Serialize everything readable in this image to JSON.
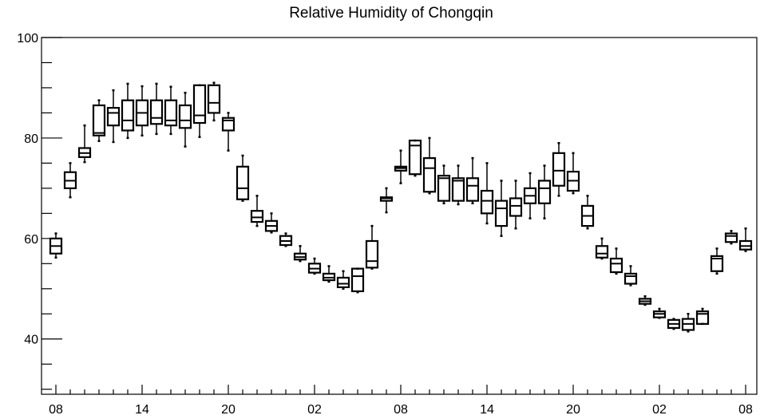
{
  "chart_data": {
    "type": "box",
    "title": "Relative Humidity of Chongqin",
    "xlabel": "",
    "ylabel": "",
    "ylim": [
      29,
      100
    ],
    "y_ticks": [
      40,
      60,
      80,
      100
    ],
    "x_tick_labels": [
      "08",
      "14",
      "20",
      "02",
      "08",
      "14",
      "20",
      "02",
      "08"
    ],
    "x_tick_hours": [
      0,
      6,
      12,
      18,
      24,
      30,
      36,
      42,
      48
    ],
    "grid": false,
    "legend": "none",
    "boxes": [
      {
        "hour": 0,
        "whisker_low": 56.2,
        "q1": 57.0,
        "median": 58.5,
        "q3": 60.0,
        "whisker_high": 61.0
      },
      {
        "hour": 1,
        "whisker_low": 68.2,
        "q1": 70.0,
        "median": 71.5,
        "q3": 73.2,
        "whisker_high": 75.0
      },
      {
        "hour": 2,
        "whisker_low": 75.2,
        "q1": 76.2,
        "median": 77.0,
        "q3": 78.0,
        "whisker_high": 82.5
      },
      {
        "hour": 3,
        "whisker_low": 79.4,
        "q1": 80.5,
        "median": 81.0,
        "q3": 86.5,
        "whisker_high": 87.5
      },
      {
        "hour": 4,
        "whisker_low": 79.2,
        "q1": 82.5,
        "median": 85.0,
        "q3": 86.0,
        "whisker_high": 89.5
      },
      {
        "hour": 5,
        "whisker_low": 80.0,
        "q1": 81.5,
        "median": 83.5,
        "q3": 87.5,
        "whisker_high": 90.8
      },
      {
        "hour": 6,
        "whisker_low": 80.5,
        "q1": 82.5,
        "median": 85.0,
        "q3": 87.5,
        "whisker_high": 90.3
      },
      {
        "hour": 7,
        "whisker_low": 80.8,
        "q1": 82.8,
        "median": 84.0,
        "q3": 87.5,
        "whisker_high": 90.8
      },
      {
        "hour": 8,
        "whisker_low": 80.8,
        "q1": 82.5,
        "median": 83.5,
        "q3": 87.5,
        "whisker_high": 90.2
      },
      {
        "hour": 9,
        "whisker_low": 78.3,
        "q1": 82.0,
        "median": 83.5,
        "q3": 86.5,
        "whisker_high": 89.0
      },
      {
        "hour": 10,
        "whisker_low": 80.2,
        "q1": 83.0,
        "median": 84.5,
        "q3": 90.5,
        "whisker_high": 90.5
      },
      {
        "hour": 11,
        "whisker_low": 83.5,
        "q1": 85.0,
        "median": 87.0,
        "q3": 90.5,
        "whisker_high": 91.0
      },
      {
        "hour": 12,
        "whisker_low": 77.5,
        "q1": 81.5,
        "median": 83.5,
        "q3": 84.0,
        "whisker_high": 85.0
      },
      {
        "hour": 13,
        "whisker_low": 67.5,
        "q1": 67.8,
        "median": 70.0,
        "q3": 74.3,
        "whisker_high": 76.5
      },
      {
        "hour": 14,
        "whisker_low": 62.5,
        "q1": 63.3,
        "median": 64.2,
        "q3": 65.5,
        "whisker_high": 68.5
      },
      {
        "hour": 15,
        "whisker_low": 61.2,
        "q1": 61.5,
        "median": 62.5,
        "q3": 63.5,
        "whisker_high": 65.0
      },
      {
        "hour": 16,
        "whisker_low": 58.5,
        "q1": 58.7,
        "median": 59.5,
        "q3": 60.5,
        "whisker_high": 61.0
      },
      {
        "hour": 17,
        "whisker_low": 55.5,
        "q1": 55.8,
        "median": 56.3,
        "q3": 57.0,
        "whisker_high": 58.5
      },
      {
        "hour": 18,
        "whisker_low": 53.0,
        "q1": 53.2,
        "median": 54.0,
        "q3": 55.0,
        "whisker_high": 56.0
      },
      {
        "hour": 19,
        "whisker_low": 51.4,
        "q1": 51.7,
        "median": 52.2,
        "q3": 53.0,
        "whisker_high": 54.5
      },
      {
        "hour": 20,
        "whisker_low": 50.0,
        "q1": 50.3,
        "median": 51.0,
        "q3": 52.2,
        "whisker_high": 53.5
      },
      {
        "hour": 21,
        "whisker_low": 49.3,
        "q1": 49.5,
        "median": 52.5,
        "q3": 54.0,
        "whisker_high": 54.0
      },
      {
        "hour": 22,
        "whisker_low": 54.0,
        "q1": 54.2,
        "median": 55.5,
        "q3": 59.5,
        "whisker_high": 62.5
      },
      {
        "hour": 23,
        "whisker_low": 65.2,
        "q1": 67.5,
        "median": 68.0,
        "q3": 68.2,
        "whisker_high": 70.0
      },
      {
        "hour": 24,
        "whisker_low": 71.0,
        "q1": 73.5,
        "median": 74.0,
        "q3": 74.3,
        "whisker_high": 77.5
      },
      {
        "hour": 25,
        "whisker_low": 72.5,
        "q1": 72.8,
        "median": 78.5,
        "q3": 79.5,
        "whisker_high": 79.5
      },
      {
        "hour": 26,
        "whisker_low": 69.0,
        "q1": 69.3,
        "median": 74.0,
        "q3": 76.0,
        "whisker_high": 80.0
      },
      {
        "hour": 27,
        "whisker_low": 67.0,
        "q1": 67.5,
        "median": 72.0,
        "q3": 72.5,
        "whisker_high": 74.5
      },
      {
        "hour": 28,
        "whisker_low": 66.8,
        "q1": 67.5,
        "median": 71.5,
        "q3": 72.0,
        "whisker_high": 74.5
      },
      {
        "hour": 29,
        "whisker_low": 67.0,
        "q1": 67.5,
        "median": 70.5,
        "q3": 72.0,
        "whisker_high": 76.0
      },
      {
        "hour": 30,
        "whisker_low": 63.0,
        "q1": 65.0,
        "median": 67.5,
        "q3": 69.5,
        "whisker_high": 75.0
      },
      {
        "hour": 31,
        "whisker_low": 60.5,
        "q1": 62.5,
        "median": 66.0,
        "q3": 67.5,
        "whisker_high": 71.5
      },
      {
        "hour": 32,
        "whisker_low": 62.0,
        "q1": 64.5,
        "median": 66.5,
        "q3": 68.0,
        "whisker_high": 71.5
      },
      {
        "hour": 33,
        "whisker_low": 64.0,
        "q1": 67.0,
        "median": 68.5,
        "q3": 70.0,
        "whisker_high": 73.0
      },
      {
        "hour": 34,
        "whisker_low": 64.0,
        "q1": 67.0,
        "median": 70.0,
        "q3": 71.5,
        "whisker_high": 74.5
      },
      {
        "hour": 35,
        "whisker_low": 68.5,
        "q1": 70.5,
        "median": 73.5,
        "q3": 77.0,
        "whisker_high": 79.0
      },
      {
        "hour": 36,
        "whisker_low": 69.0,
        "q1": 69.5,
        "median": 71.5,
        "q3": 73.3,
        "whisker_high": 77.0
      },
      {
        "hour": 37,
        "whisker_low": 62.0,
        "q1": 62.5,
        "median": 64.5,
        "q3": 66.5,
        "whisker_high": 68.5
      },
      {
        "hour": 38,
        "whisker_low": 56.0,
        "q1": 56.2,
        "median": 57.0,
        "q3": 58.5,
        "whisker_high": 60.0
      },
      {
        "hour": 39,
        "whisker_low": 53.0,
        "q1": 53.3,
        "median": 55.0,
        "q3": 56.0,
        "whisker_high": 58.0
      },
      {
        "hour": 40,
        "whisker_low": 50.7,
        "q1": 51.0,
        "median": 52.5,
        "q3": 53.0,
        "whisker_high": 54.5
      },
      {
        "hour": 41,
        "whisker_low": 46.8,
        "q1": 47.0,
        "median": 47.5,
        "q3": 48.0,
        "whisker_high": 48.5
      },
      {
        "hour": 42,
        "whisker_low": 44.2,
        "q1": 44.3,
        "median": 45.0,
        "q3": 45.5,
        "whisker_high": 46.0
      },
      {
        "hour": 43,
        "whisker_low": 42.0,
        "q1": 42.2,
        "median": 43.0,
        "q3": 43.8,
        "whisker_high": 44.0
      },
      {
        "hour": 44,
        "whisker_low": 41.5,
        "q1": 41.8,
        "median": 43.0,
        "q3": 44.0,
        "whisker_high": 45.0
      },
      {
        "hour": 45,
        "whisker_low": 43.0,
        "q1": 43.0,
        "median": 45.0,
        "q3": 45.5,
        "whisker_high": 46.0
      },
      {
        "hour": 46,
        "whisker_low": 53.0,
        "q1": 53.5,
        "median": 56.0,
        "q3": 56.5,
        "whisker_high": 58.0
      },
      {
        "hour": 47,
        "whisker_low": 59.0,
        "q1": 59.3,
        "median": 60.5,
        "q3": 61.0,
        "whisker_high": 61.5
      },
      {
        "hour": 48,
        "whisker_low": 57.5,
        "q1": 57.8,
        "median": 58.5,
        "q3": 59.5,
        "whisker_high": 62.0
      }
    ]
  }
}
